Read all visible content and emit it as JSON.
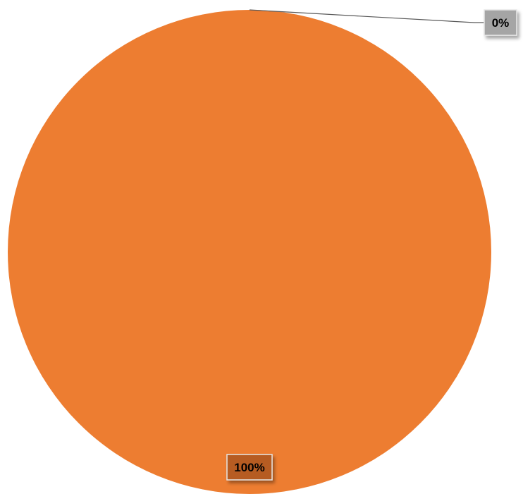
{
  "chart_data": {
    "type": "pie",
    "slices": [
      {
        "value": 0,
        "label": "0%",
        "color": "#a5a5a5"
      },
      {
        "value": 100,
        "label": "100%",
        "color": "#ed7d31"
      }
    ],
    "legend": "none"
  }
}
